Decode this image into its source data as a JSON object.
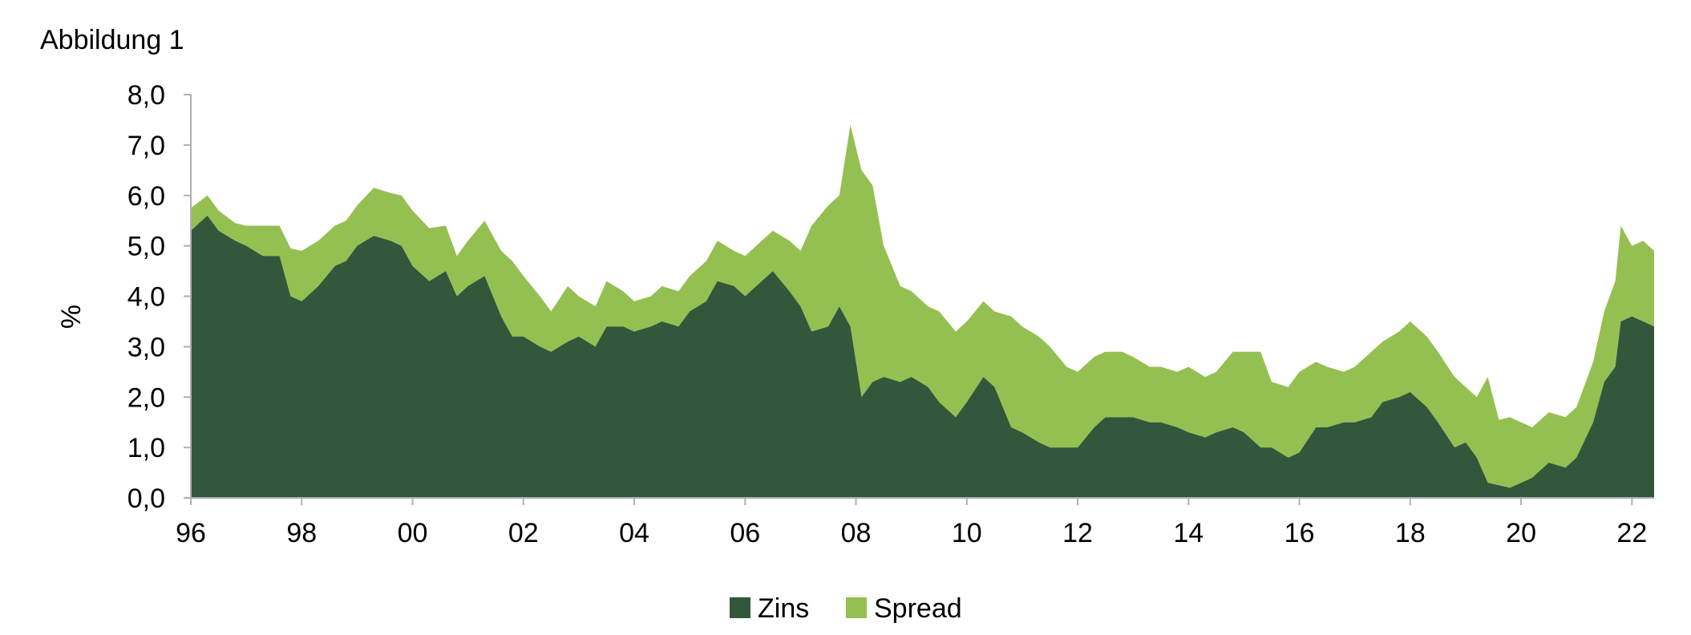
{
  "chart_data": {
    "type": "area",
    "stacked": true,
    "title": "Abbildung 1",
    "xlabel": "",
    "ylabel": "%",
    "ylim": [
      0,
      8
    ],
    "yticks": [
      0,
      1,
      2,
      3,
      4,
      5,
      6,
      7,
      8
    ],
    "ytick_labels": [
      "0,0",
      "1,0",
      "2,0",
      "3,0",
      "4,0",
      "5,0",
      "6,0",
      "7,0",
      "8,0"
    ],
    "xlim": [
      1996,
      2022.4
    ],
    "xticks": [
      1996,
      1998,
      2000,
      2002,
      2004,
      2006,
      2008,
      2010,
      2012,
      2014,
      2016,
      2018,
      2020,
      2022
    ],
    "xtick_labels": [
      "96",
      "98",
      "00",
      "02",
      "04",
      "06",
      "08",
      "10",
      "12",
      "14",
      "16",
      "18",
      "20",
      "22"
    ],
    "grid": false,
    "legend_position": "bottom-center",
    "colors": {
      "Zins": "#33573a",
      "Spread": "#94c052",
      "axis": "#b0b0b0"
    },
    "x": [
      1996.0,
      1996.3,
      1996.5,
      1996.8,
      1997.0,
      1997.3,
      1997.6,
      1997.8,
      1998.0,
      1998.3,
      1998.6,
      1998.8,
      1999.0,
      1999.3,
      1999.6,
      1999.8,
      2000.0,
      2000.3,
      2000.6,
      2000.8,
      2001.0,
      2001.3,
      2001.6,
      2001.8,
      2002.0,
      2002.3,
      2002.5,
      2002.8,
      2003.0,
      2003.3,
      2003.5,
      2003.8,
      2004.0,
      2004.3,
      2004.5,
      2004.8,
      2005.0,
      2005.3,
      2005.5,
      2005.8,
      2006.0,
      2006.3,
      2006.5,
      2006.8,
      2007.0,
      2007.2,
      2007.5,
      2007.7,
      2007.9,
      2008.1,
      2008.3,
      2008.5,
      2008.8,
      2009.0,
      2009.3,
      2009.5,
      2009.8,
      2010.0,
      2010.3,
      2010.5,
      2010.8,
      2011.0,
      2011.3,
      2011.5,
      2011.8,
      2012.0,
      2012.3,
      2012.5,
      2012.8,
      2013.0,
      2013.3,
      2013.5,
      2013.8,
      2014.0,
      2014.3,
      2014.5,
      2014.8,
      2015.0,
      2015.3,
      2015.5,
      2015.8,
      2016.0,
      2016.3,
      2016.5,
      2016.8,
      2017.0,
      2017.3,
      2017.5,
      2017.8,
      2018.0,
      2018.3,
      2018.5,
      2018.8,
      2019.0,
      2019.2,
      2019.4,
      2019.6,
      2019.8,
      2020.0,
      2020.2,
      2020.5,
      2020.8,
      2021.0,
      2021.3,
      2021.5,
      2021.7,
      2021.8,
      2022.0,
      2022.2,
      2022.4
    ],
    "series": [
      {
        "name": "Zins",
        "values": [
          5.3,
          5.6,
          5.3,
          5.1,
          5.0,
          4.8,
          4.8,
          4.0,
          3.9,
          4.2,
          4.6,
          4.7,
          5.0,
          5.2,
          5.1,
          5.0,
          4.6,
          4.3,
          4.5,
          4.0,
          4.2,
          4.4,
          3.6,
          3.2,
          3.2,
          3.0,
          2.9,
          3.1,
          3.2,
          3.0,
          3.4,
          3.4,
          3.3,
          3.4,
          3.5,
          3.4,
          3.7,
          3.9,
          4.3,
          4.2,
          4.0,
          4.3,
          4.5,
          4.1,
          3.8,
          3.3,
          3.4,
          3.8,
          3.4,
          2.0,
          2.3,
          2.4,
          2.3,
          2.4,
          2.2,
          1.9,
          1.6,
          1.9,
          2.4,
          2.2,
          1.4,
          1.3,
          1.1,
          1.0,
          1.0,
          1.0,
          1.4,
          1.6,
          1.6,
          1.6,
          1.5,
          1.5,
          1.4,
          1.3,
          1.2,
          1.3,
          1.4,
          1.3,
          1.0,
          1.0,
          0.8,
          0.9,
          1.4,
          1.4,
          1.5,
          1.5,
          1.6,
          1.9,
          2.0,
          2.1,
          1.8,
          1.5,
          1.0,
          1.1,
          0.8,
          0.3,
          0.25,
          0.2,
          0.3,
          0.4,
          0.7,
          0.6,
          0.8,
          1.5,
          2.3,
          2.6,
          3.5,
          3.6,
          3.5,
          3.4
        ]
      },
      {
        "name": "Spread",
        "values": [
          0.45,
          0.4,
          0.4,
          0.35,
          0.4,
          0.6,
          0.6,
          0.95,
          1.0,
          0.9,
          0.8,
          0.8,
          0.8,
          0.95,
          0.95,
          1.0,
          1.1,
          1.05,
          0.9,
          0.8,
          0.9,
          1.1,
          1.3,
          1.5,
          1.2,
          1.0,
          0.8,
          1.1,
          0.8,
          0.8,
          0.9,
          0.7,
          0.6,
          0.6,
          0.7,
          0.7,
          0.7,
          0.8,
          0.8,
          0.7,
          0.8,
          0.8,
          0.8,
          1.0,
          1.1,
          2.1,
          2.4,
          2.2,
          4.0,
          4.5,
          3.9,
          2.6,
          1.9,
          1.7,
          1.6,
          1.8,
          1.7,
          1.6,
          1.5,
          1.5,
          2.2,
          2.1,
          2.1,
          2.0,
          1.6,
          1.5,
          1.4,
          1.3,
          1.3,
          1.2,
          1.1,
          1.1,
          1.1,
          1.3,
          1.2,
          1.2,
          1.5,
          1.6,
          1.9,
          1.3,
          1.4,
          1.6,
          1.3,
          1.2,
          1.0,
          1.1,
          1.3,
          1.2,
          1.3,
          1.4,
          1.4,
          1.4,
          1.4,
          1.1,
          1.2,
          2.1,
          1.3,
          1.4,
          1.2,
          1.0,
          1.0,
          1.0,
          1.0,
          1.2,
          1.4,
          1.7,
          1.9,
          1.4,
          1.6,
          1.5
        ]
      }
    ]
  }
}
